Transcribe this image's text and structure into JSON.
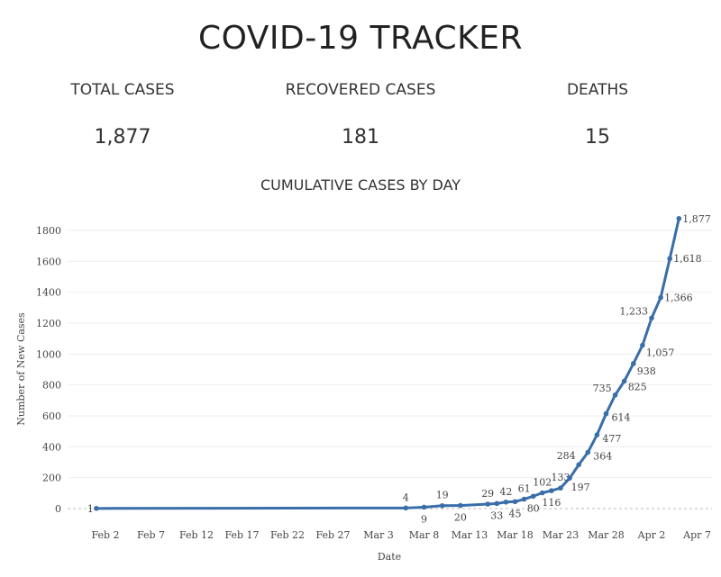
{
  "header": {
    "title": "COVID-19 TRACKER"
  },
  "stats": [
    {
      "label": "TOTAL CASES",
      "value": "1,877"
    },
    {
      "label": "RECOVERED CASES",
      "value": "181"
    },
    {
      "label": "DEATHS",
      "value": "15"
    }
  ],
  "chart_data": {
    "type": "line",
    "title": "CUMULATIVE CASES BY DAY",
    "xlabel": "Date",
    "ylabel": "Number of New Cases",
    "ylim": [
      0,
      1800
    ],
    "yticks": [
      0,
      200,
      400,
      600,
      800,
      1000,
      1200,
      1400,
      1600,
      1800
    ],
    "xticks": [
      "Feb 2",
      "Feb 7",
      "Feb 12",
      "Feb 17",
      "Feb 22",
      "Feb 27",
      "Mar 3",
      "Mar 8",
      "Mar 13",
      "Mar 18",
      "Mar 23",
      "Mar 28",
      "Apr 2",
      "Apr 7"
    ],
    "grid": true,
    "color": "#3a6ea8",
    "x": [
      "Feb 1",
      "Mar 6",
      "Mar 8",
      "Mar 10",
      "Mar 12",
      "Mar 15",
      "Mar 16",
      "Mar 17",
      "Mar 18",
      "Mar 19",
      "Mar 20",
      "Mar 21",
      "Mar 22",
      "Mar 23",
      "Mar 24",
      "Mar 25",
      "Mar 26",
      "Mar 27",
      "Mar 28",
      "Mar 29",
      "Mar 30",
      "Mar 31",
      "Apr 1",
      "Apr 2",
      "Apr 3",
      "Apr 4",
      "Apr 5"
    ],
    "values": [
      1,
      4,
      9,
      19,
      20,
      29,
      33,
      42,
      45,
      61,
      80,
      102,
      116,
      133,
      197,
      284,
      364,
      477,
      614,
      735,
      825,
      938,
      1057,
      1233,
      1366,
      1618,
      1877
    ],
    "labels": [
      "1",
      "4",
      "9",
      "19",
      "20",
      "29",
      "33",
      "42",
      "45",
      "61",
      "80",
      "102",
      "116",
      "133",
      "197",
      "284",
      "364",
      "477",
      "614",
      "735",
      "825",
      "938",
      "1,057",
      "1,233",
      "1,366",
      "1,618",
      "1,877"
    ]
  }
}
